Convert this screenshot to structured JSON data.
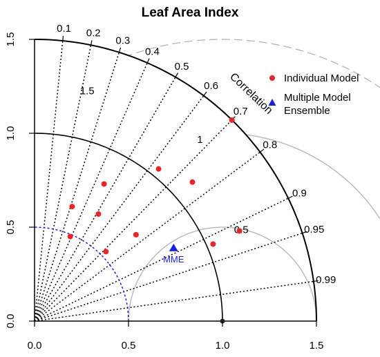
{
  "chart_data": {
    "type": "scatter",
    "subtype": "taylor-diagram",
    "title": "Leaf Area Index",
    "x_ticks": [
      "0.0",
      "0.5",
      "1.0",
      "1.5"
    ],
    "y_ticks": [
      "0.0",
      "0.5",
      "1.0",
      "1.5"
    ],
    "axis_range": [
      0,
      1.5
    ],
    "correlation_label": "Correlation",
    "correlation_ticks": [
      {
        "r": 0.1,
        "label": "0.1"
      },
      {
        "r": 0.2,
        "label": "0.2"
      },
      {
        "r": 0.3,
        "label": "0.3"
      },
      {
        "r": 0.4,
        "label": "0.4"
      },
      {
        "r": 0.5,
        "label": "0.5"
      },
      {
        "r": 0.6,
        "label": "0.6"
      },
      {
        "r": 0.7,
        "label": "0.7"
      },
      {
        "r": 0.8,
        "label": "0.8"
      },
      {
        "r": 0.9,
        "label": "0.9"
      },
      {
        "r": 0.95,
        "label": "0.95"
      },
      {
        "r": 0.99,
        "label": "0.99"
      }
    ],
    "rmsd_contours": [
      {
        "value": 0.5,
        "label": "0.5"
      },
      {
        "value": 1.0,
        "label": "1"
      },
      {
        "value": 1.5,
        "label": "1.5"
      }
    ],
    "reference_std": 1.0,
    "mme_radius": 0.5,
    "legend_position": "top-right",
    "series": [
      {
        "name": "Individual Model",
        "marker": "circle",
        "color": "#e8262a",
        "x": [
          1.05,
          0.66,
          0.84,
          0.37,
          0.2,
          0.34,
          0.19,
          0.54,
          0.38,
          0.95,
          1.09
        ],
        "y": [
          1.07,
          0.81,
          0.74,
          0.73,
          0.61,
          0.57,
          0.45,
          0.46,
          0.37,
          0.41,
          0.48
        ]
      },
      {
        "name": "Multiple Model Ensemble",
        "marker": "triangle",
        "color": "#1b1fd6",
        "x": [
          0.74
        ],
        "y": [
          0.39
        ],
        "point_label": "MME"
      }
    ]
  },
  "legend": {
    "item1": "Individual Model",
    "item2_line1": "Multiple Model",
    "item2_line2": "Ensemble"
  }
}
